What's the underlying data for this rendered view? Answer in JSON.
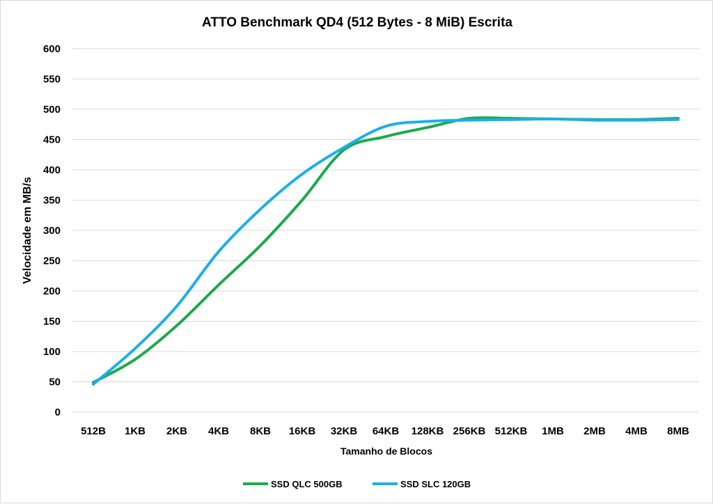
{
  "chart_data": {
    "type": "line",
    "title": "ATTO Benchmark QD4 (512 Bytes - 8 MiB) Escrita",
    "xlabel": "Tamanho de Blocos",
    "ylabel": "Velocidade em MB/s",
    "ylim": [
      0,
      600
    ],
    "yticks": [
      0,
      50,
      100,
      150,
      200,
      250,
      300,
      350,
      400,
      450,
      500,
      550,
      600
    ],
    "ytick_labels": [
      "0",
      "50",
      "100",
      "150",
      "200",
      "250",
      "300",
      "350",
      "400",
      "450",
      "500",
      "550",
      "600"
    ],
    "grid": true,
    "legend_position": "bottom-center",
    "categories": [
      "512B",
      "1KB",
      "2KB",
      "4KB",
      "8KB",
      "16KB",
      "32KB",
      "64KB",
      "128KB",
      "256KB",
      "512KB",
      "1MB",
      "2MB",
      "4MB",
      "8MB"
    ],
    "series": [
      {
        "name": "SSD QLC 500GB",
        "color": "#1aaa4a",
        "values": [
          49,
          87,
          143,
          210,
          275,
          350,
          433,
          455,
          470,
          485,
          485,
          484,
          483,
          483,
          485
        ]
      },
      {
        "name": "SSD SLC 120GB",
        "color": "#1ab0e6",
        "values": [
          46,
          105,
          175,
          265,
          335,
          393,
          437,
          472,
          480,
          482,
          483,
          484,
          482,
          482,
          483
        ]
      }
    ]
  }
}
